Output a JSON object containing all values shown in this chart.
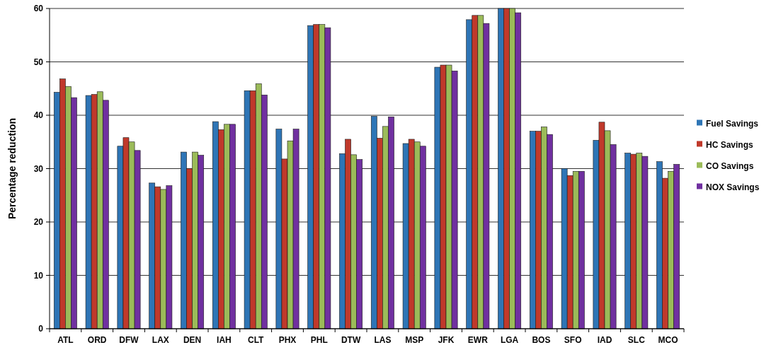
{
  "chart_data": {
    "type": "bar",
    "ylabel": "Percentage reduction",
    "categories": [
      "ATL",
      "ORD",
      "DFW",
      "LAX",
      "DEN",
      "IAH",
      "CLT",
      "PHX",
      "PHL",
      "DTW",
      "LAS",
      "MSP",
      "JFK",
      "EWR",
      "LGA",
      "BOS",
      "SFO",
      "IAD",
      "SLC",
      "MCO"
    ],
    "series": [
      {
        "name": "Fuel Savings",
        "color": "#2e75b6",
        "values": [
          44.3,
          43.7,
          34.2,
          27.3,
          33.1,
          38.8,
          44.6,
          37.4,
          56.8,
          32.8,
          39.8,
          34.7,
          49.0,
          57.9,
          60,
          37.0,
          30.0,
          35.3,
          32.9,
          31.3
        ]
      },
      {
        "name": "HC Savings",
        "color": "#c0392b",
        "values": [
          46.8,
          43.9,
          35.8,
          26.6,
          30.0,
          37.3,
          44.6,
          31.8,
          57.0,
          35.5,
          35.7,
          35.5,
          49.4,
          58.7,
          60,
          37.0,
          28.7,
          38.7,
          32.7,
          28.2
        ]
      },
      {
        "name": "CO Savings",
        "color": "#9bbb59",
        "values": [
          45.4,
          44.4,
          35.0,
          26.1,
          33.1,
          38.3,
          45.9,
          35.2,
          57.0,
          32.6,
          37.9,
          35.0,
          49.4,
          58.7,
          60,
          37.8,
          29.5,
          37.1,
          32.9,
          29.5
        ]
      },
      {
        "name": "NOX Savings",
        "color": "#7030a0",
        "values": [
          43.3,
          42.8,
          33.4,
          26.8,
          32.5,
          38.3,
          43.8,
          37.4,
          56.4,
          31.7,
          39.7,
          34.2,
          48.3,
          57.2,
          59.2,
          36.4,
          29.5,
          34.5,
          32.3,
          30.8
        ]
      }
    ],
    "ylim": [
      0,
      60
    ],
    "yticks": [
      0,
      10,
      20,
      30,
      40,
      50,
      60
    ],
    "grid": "y",
    "legend": "right"
  }
}
